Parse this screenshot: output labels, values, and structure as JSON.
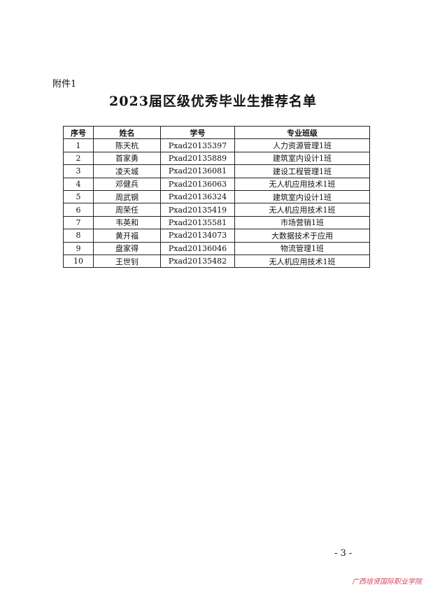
{
  "attachment_label": "附件1",
  "title": "2023届区级优秀毕业生推荐名单",
  "table": {
    "headers": [
      "序号",
      "姓名",
      "学号",
      "专业班级"
    ],
    "rows": [
      [
        "1",
        "陈天杭",
        "Pxad20135397",
        "人力资源管理1班"
      ],
      [
        "2",
        "首家勇",
        "Pxad20135889",
        "建筑室内设计1班"
      ],
      [
        "3",
        "凌天城",
        "Pxad20136081",
        "建设工程管理1班"
      ],
      [
        "4",
        "邓健兵",
        "Pxad20136063",
        "无人机应用技术1班"
      ],
      [
        "5",
        "周武钢",
        "Pxad20136324",
        "建筑室内设计1班"
      ],
      [
        "6",
        "周荣任",
        "Pxad20135419",
        "无人机应用技术1班"
      ],
      [
        "7",
        "韦英和",
        "Pxad20135581",
        "市场营销1班"
      ],
      [
        "8",
        "黄开福",
        "Pxad20134073",
        "大数据技术于应用"
      ],
      [
        "9",
        "盘家得",
        "Pxad20136046",
        "物流管理1班"
      ],
      [
        "10",
        "王世钊",
        "Pxad20135482",
        "无人机应用技术1班"
      ]
    ]
  },
  "page_number": "- 3 -",
  "watermark": "广西培贤国际职业学院",
  "watermark_color": "#d4455b"
}
